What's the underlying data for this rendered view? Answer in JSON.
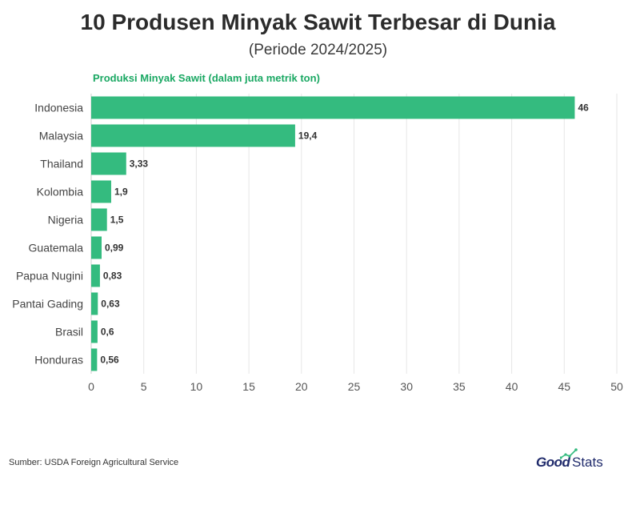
{
  "header": {
    "title": "10 Produsen Minyak Sawit Terbesar di Dunia",
    "subtitle": "(Periode 2024/2025)"
  },
  "footer": {
    "source": "Sumber: USDA Foreign Agricultural Service",
    "logo_good": "Good",
    "logo_stats": "Stats"
  },
  "colors": {
    "bar": "#34bb7f",
    "accent": "#1aa863",
    "logo": "#1f2a6b"
  },
  "chart_data": {
    "type": "bar",
    "orientation": "horizontal",
    "series_label": "Produksi Minyak Sawit (dalam juta metrik ton)",
    "categories": [
      "Indonesia",
      "Malaysia",
      "Thailand",
      "Kolombia",
      "Nigeria",
      "Guatemala",
      "Papua Nugini",
      "Pantai Gading",
      "Brasil",
      "Honduras"
    ],
    "values": [
      46,
      19.4,
      3.33,
      1.9,
      1.5,
      0.99,
      0.83,
      0.63,
      0.6,
      0.56
    ],
    "value_labels": [
      "46",
      "19,4",
      "3,33",
      "1,9",
      "1,5",
      "0,99",
      "0,83",
      "0,63",
      "0,6",
      "0,56"
    ],
    "xlim": [
      0,
      50
    ],
    "x_ticks": [
      0,
      5,
      10,
      15,
      20,
      25,
      30,
      35,
      40,
      45,
      50
    ],
    "grid": true
  }
}
